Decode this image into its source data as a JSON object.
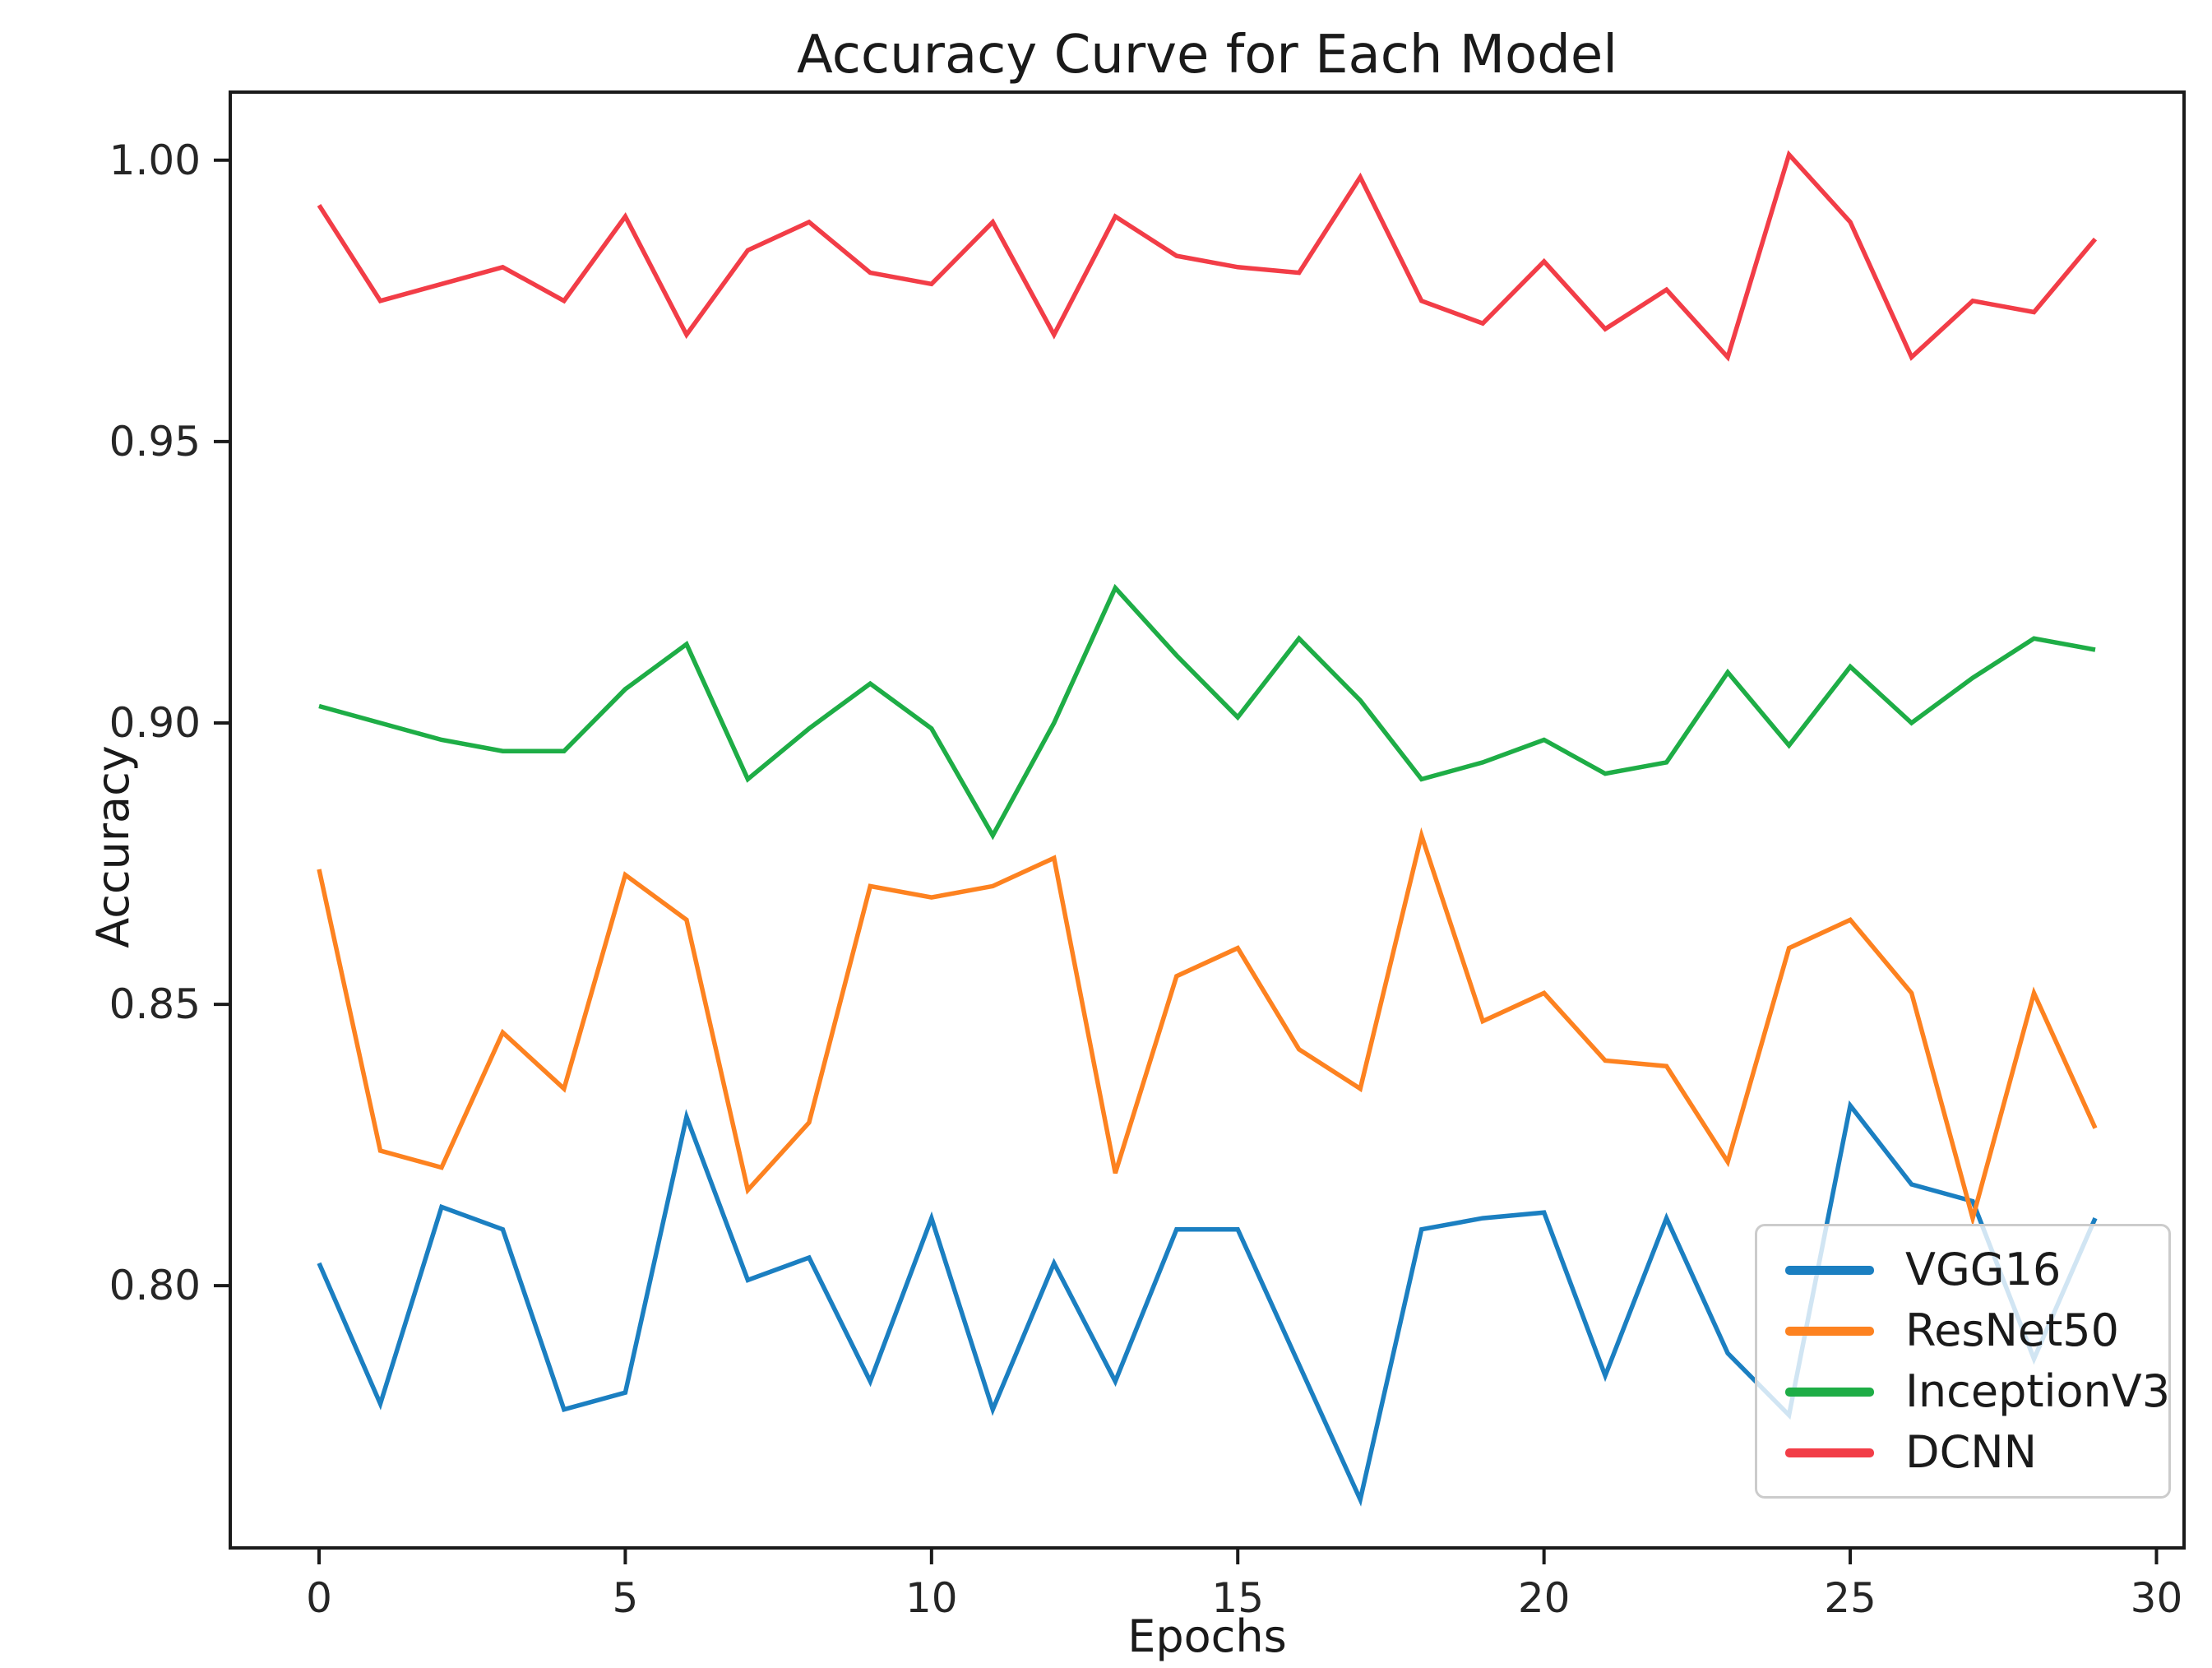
{
  "chart_data": {
    "type": "line",
    "title": "Accuracy Curve for Each Model",
    "xlabel": "Epochs",
    "ylabel": "Accuracy",
    "x": [
      0,
      1,
      2,
      3,
      4,
      5,
      6,
      7,
      8,
      9,
      10,
      11,
      12,
      13,
      14,
      15,
      16,
      17,
      18,
      19,
      20,
      21,
      22,
      23,
      24,
      25,
      26,
      27,
      28,
      29
    ],
    "series": [
      {
        "name": "VGG16",
        "color": "#1b7fc1",
        "values": [
          0.804,
          0.779,
          0.814,
          0.81,
          0.778,
          0.781,
          0.83,
          0.801,
          0.805,
          0.783,
          0.812,
          0.778,
          0.804,
          0.783,
          0.81,
          0.81,
          0.786,
          0.762,
          0.81,
          0.812,
          0.813,
          0.784,
          0.812,
          0.788,
          0.777,
          0.832,
          0.818,
          0.815,
          0.787,
          0.812
        ]
      },
      {
        "name": "ResNet50",
        "color": "#fd8220",
        "values": [
          0.874,
          0.824,
          0.821,
          0.845,
          0.835,
          0.873,
          0.865,
          0.817,
          0.829,
          0.871,
          0.869,
          0.871,
          0.876,
          0.82,
          0.855,
          0.86,
          0.842,
          0.835,
          0.88,
          0.847,
          0.852,
          0.84,
          0.839,
          0.822,
          0.86,
          0.865,
          0.852,
          0.812,
          0.852,
          0.828
        ]
      },
      {
        "name": "InceptionV3",
        "color": "#1ead46",
        "values": [
          0.903,
          0.9,
          0.897,
          0.895,
          0.895,
          0.906,
          0.914,
          0.89,
          0.899,
          0.907,
          0.899,
          0.88,
          0.9,
          0.924,
          0.912,
          0.901,
          0.915,
          0.904,
          0.89,
          0.893,
          0.897,
          0.891,
          0.893,
          0.909,
          0.896,
          0.91,
          0.9,
          0.908,
          0.915,
          0.913
        ]
      },
      {
        "name": "DCNN",
        "color": "#f23d47",
        "values": [
          0.992,
          0.975,
          0.978,
          0.981,
          0.975,
          0.99,
          0.969,
          0.984,
          0.989,
          0.98,
          0.978,
          0.989,
          0.969,
          0.99,
          0.983,
          0.981,
          0.98,
          0.997,
          0.975,
          0.971,
          0.982,
          0.97,
          0.977,
          0.965,
          1.001,
          0.989,
          0.965,
          0.975,
          0.973,
          0.986
        ]
      }
    ],
    "xticks": [
      0,
      5,
      10,
      15,
      20,
      25,
      30
    ],
    "yticks": [
      0.8,
      0.85,
      0.9,
      0.95,
      1.0
    ],
    "xlim": [
      -1.45,
      30.45
    ],
    "ylim": [
      0.7534,
      1.0121
    ],
    "grid": false,
    "legend_position": "lower right"
  }
}
